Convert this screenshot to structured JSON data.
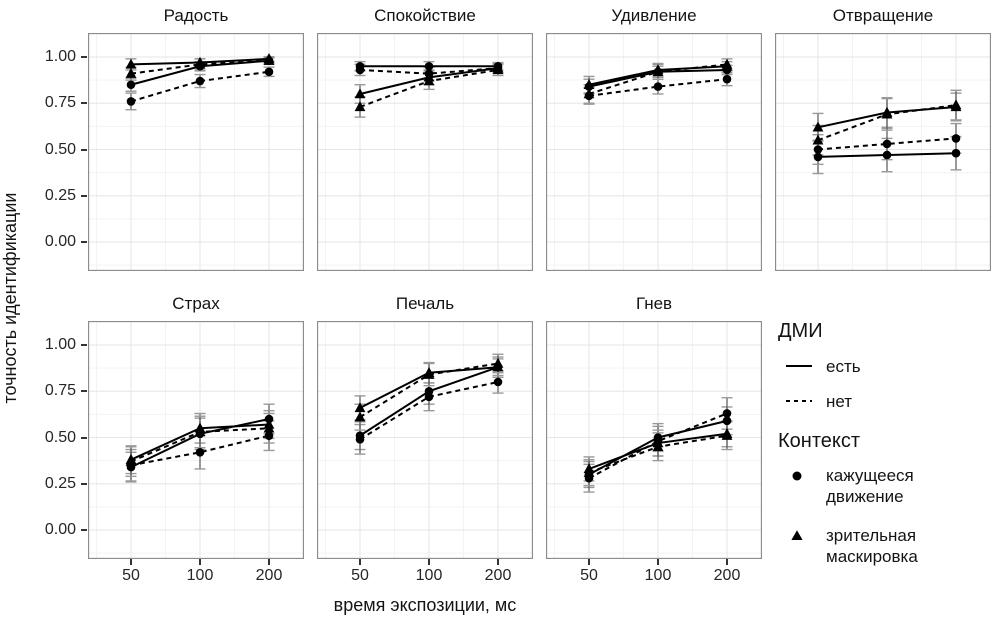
{
  "figure": {
    "background": "#ffffff",
    "series_color": "#000000",
    "errorbar_stem_color": "#555555",
    "errorbar_cap_color": "#999999",
    "grid_major_color": "#e6e6e6",
    "grid_minor_color": "#f3f3f3",
    "panel_border_color": "#8c8c8c"
  },
  "axes": {
    "x_title": "время экспозиции, мс",
    "y_title": "точность идентификации",
    "x_tick_labels": [
      "50",
      "100",
      "200"
    ],
    "y_tick_labels": [
      "1.00",
      "0.75",
      "0.50",
      "0.25",
      "0.00"
    ]
  },
  "legend": {
    "linetype": {
      "title": "ДМИ",
      "items": [
        {
          "label": "есть",
          "style": "solid"
        },
        {
          "label": "нет",
          "style": "dashed"
        }
      ]
    },
    "shape": {
      "title": "Контекст",
      "items": [
        {
          "label": "кажущееся движение",
          "marker": "circle"
        },
        {
          "label": "зрительная маскировка",
          "marker": "triangle"
        }
      ]
    }
  },
  "chart_data": {
    "type": "line",
    "x": [
      50,
      100,
      200
    ],
    "x_scale": "log",
    "ylim": [
      0,
      1
    ],
    "yticks": [
      1.0,
      0.75,
      0.5,
      0.25,
      0.0
    ],
    "grid": true,
    "legend_position": "right",
    "error_bars": true,
    "series_keys": [
      {
        "id": "circle_solid",
        "context": "кажущееся движение",
        "dmi": "есть",
        "marker": "circle",
        "line": "solid"
      },
      {
        "id": "circle_dashed",
        "context": "кажущееся движение",
        "dmi": "нет",
        "marker": "circle",
        "line": "dashed"
      },
      {
        "id": "triangle_solid",
        "context": "зрительная маскировка",
        "dmi": "есть",
        "marker": "triangle",
        "line": "solid"
      },
      {
        "id": "triangle_dashed",
        "context": "зрительная маскировка",
        "dmi": "нет",
        "marker": "triangle",
        "line": "dashed"
      }
    ],
    "panels": [
      {
        "title": "Радость",
        "series": {
          "circle_solid": {
            "values": [
              0.85,
              0.95,
              0.98
            ],
            "err": [
              0.035,
              0.025,
              0.015
            ]
          },
          "circle_dashed": {
            "values": [
              0.76,
              0.87,
              0.92
            ],
            "err": [
              0.045,
              0.035,
              0.025
            ]
          },
          "triangle_solid": {
            "values": [
              0.96,
              0.97,
              0.99
            ],
            "err": [
              0.03,
              0.02,
              0.012
            ]
          },
          "triangle_dashed": {
            "values": [
              0.91,
              0.96,
              0.98
            ],
            "err": [
              0.035,
              0.03,
              0.02
            ]
          }
        }
      },
      {
        "title": "Спокойствие",
        "series": {
          "circle_solid": {
            "values": [
              0.95,
              0.95,
              0.95
            ],
            "err": [
              0.025,
              0.025,
              0.02
            ]
          },
          "circle_dashed": {
            "values": [
              0.93,
              0.91,
              0.94
            ],
            "err": [
              0.03,
              0.035,
              0.025
            ]
          },
          "triangle_solid": {
            "values": [
              0.8,
              0.89,
              0.94
            ],
            "err": [
              0.05,
              0.04,
              0.025
            ]
          },
          "triangle_dashed": {
            "values": [
              0.73,
              0.87,
              0.93
            ],
            "err": [
              0.055,
              0.045,
              0.03
            ]
          }
        }
      },
      {
        "title": "Удивление",
        "series": {
          "circle_solid": {
            "values": [
              0.84,
              0.92,
              0.93
            ],
            "err": [
              0.04,
              0.03,
              0.025
            ]
          },
          "circle_dashed": {
            "values": [
              0.79,
              0.84,
              0.88
            ],
            "err": [
              0.045,
              0.04,
              0.035
            ]
          },
          "triangle_solid": {
            "values": [
              0.85,
              0.93,
              0.95
            ],
            "err": [
              0.045,
              0.035,
              0.025
            ]
          },
          "triangle_dashed": {
            "values": [
              0.8,
              0.92,
              0.96
            ],
            "err": [
              0.05,
              0.04,
              0.03
            ]
          }
        }
      },
      {
        "title": "Отвращение",
        "series": {
          "circle_solid": {
            "values": [
              0.46,
              0.47,
              0.48
            ],
            "err": [
              0.09,
              0.09,
              0.09
            ]
          },
          "circle_dashed": {
            "values": [
              0.5,
              0.53,
              0.56
            ],
            "err": [
              0.08,
              0.085,
              0.08
            ]
          },
          "triangle_solid": {
            "values": [
              0.62,
              0.7,
              0.73
            ],
            "err": [
              0.075,
              0.08,
              0.075
            ]
          },
          "triangle_dashed": {
            "values": [
              0.55,
              0.69,
              0.74
            ],
            "err": [
              0.08,
              0.085,
              0.08
            ]
          }
        }
      },
      {
        "title": "Страх",
        "series": {
          "circle_solid": {
            "values": [
              0.34,
              0.52,
              0.6
            ],
            "err": [
              0.08,
              0.085,
              0.08
            ]
          },
          "circle_dashed": {
            "values": [
              0.35,
              0.42,
              0.51
            ],
            "err": [
              0.085,
              0.09,
              0.08
            ]
          },
          "triangle_solid": {
            "values": [
              0.38,
              0.55,
              0.57
            ],
            "err": [
              0.075,
              0.08,
              0.075
            ]
          },
          "triangle_dashed": {
            "values": [
              0.37,
              0.53,
              0.55
            ],
            "err": [
              0.08,
              0.085,
              0.08
            ]
          }
        }
      },
      {
        "title": "Печаль",
        "series": {
          "circle_solid": {
            "values": [
              0.51,
              0.75,
              0.88
            ],
            "err": [
              0.075,
              0.07,
              0.055
            ]
          },
          "circle_dashed": {
            "values": [
              0.49,
              0.72,
              0.8
            ],
            "err": [
              0.08,
              0.075,
              0.06
            ]
          },
          "triangle_solid": {
            "values": [
              0.66,
              0.85,
              0.88
            ],
            "err": [
              0.065,
              0.055,
              0.045
            ]
          },
          "triangle_dashed": {
            "values": [
              0.61,
              0.84,
              0.9
            ],
            "err": [
              0.07,
              0.06,
              0.05
            ]
          }
        }
      },
      {
        "title": "Гнев",
        "series": {
          "circle_solid": {
            "values": [
              0.3,
              0.5,
              0.59
            ],
            "err": [
              0.07,
              0.075,
              0.075
            ]
          },
          "circle_dashed": {
            "values": [
              0.28,
              0.48,
              0.63
            ],
            "err": [
              0.075,
              0.08,
              0.085
            ]
          },
          "triangle_solid": {
            "values": [
              0.33,
              0.47,
              0.52
            ],
            "err": [
              0.065,
              0.07,
              0.07
            ]
          },
          "triangle_dashed": {
            "values": [
              0.31,
              0.45,
              0.51
            ],
            "err": [
              0.07,
              0.075,
              0.075
            ]
          }
        }
      }
    ]
  }
}
